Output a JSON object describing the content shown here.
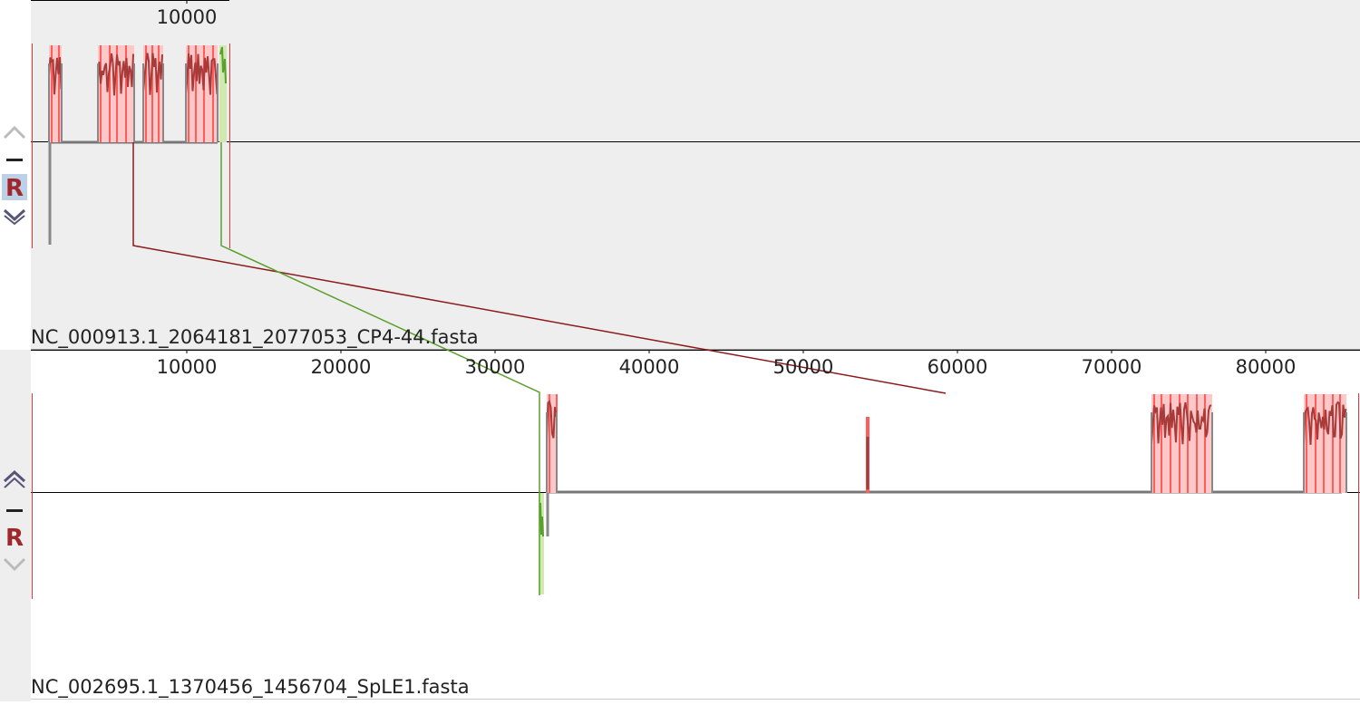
{
  "panels": [
    {
      "name": "NC_000913.1_2064181_2077053_CP4-44.fasta",
      "ticks": [
        10000
      ],
      "control": "R"
    },
    {
      "name": "NC_002695.1_1370456_1456704_SpLE1.fasta",
      "ticks": [
        10000,
        20000,
        30000,
        40000,
        50000,
        60000,
        70000,
        80000
      ],
      "control": "R"
    }
  ]
}
